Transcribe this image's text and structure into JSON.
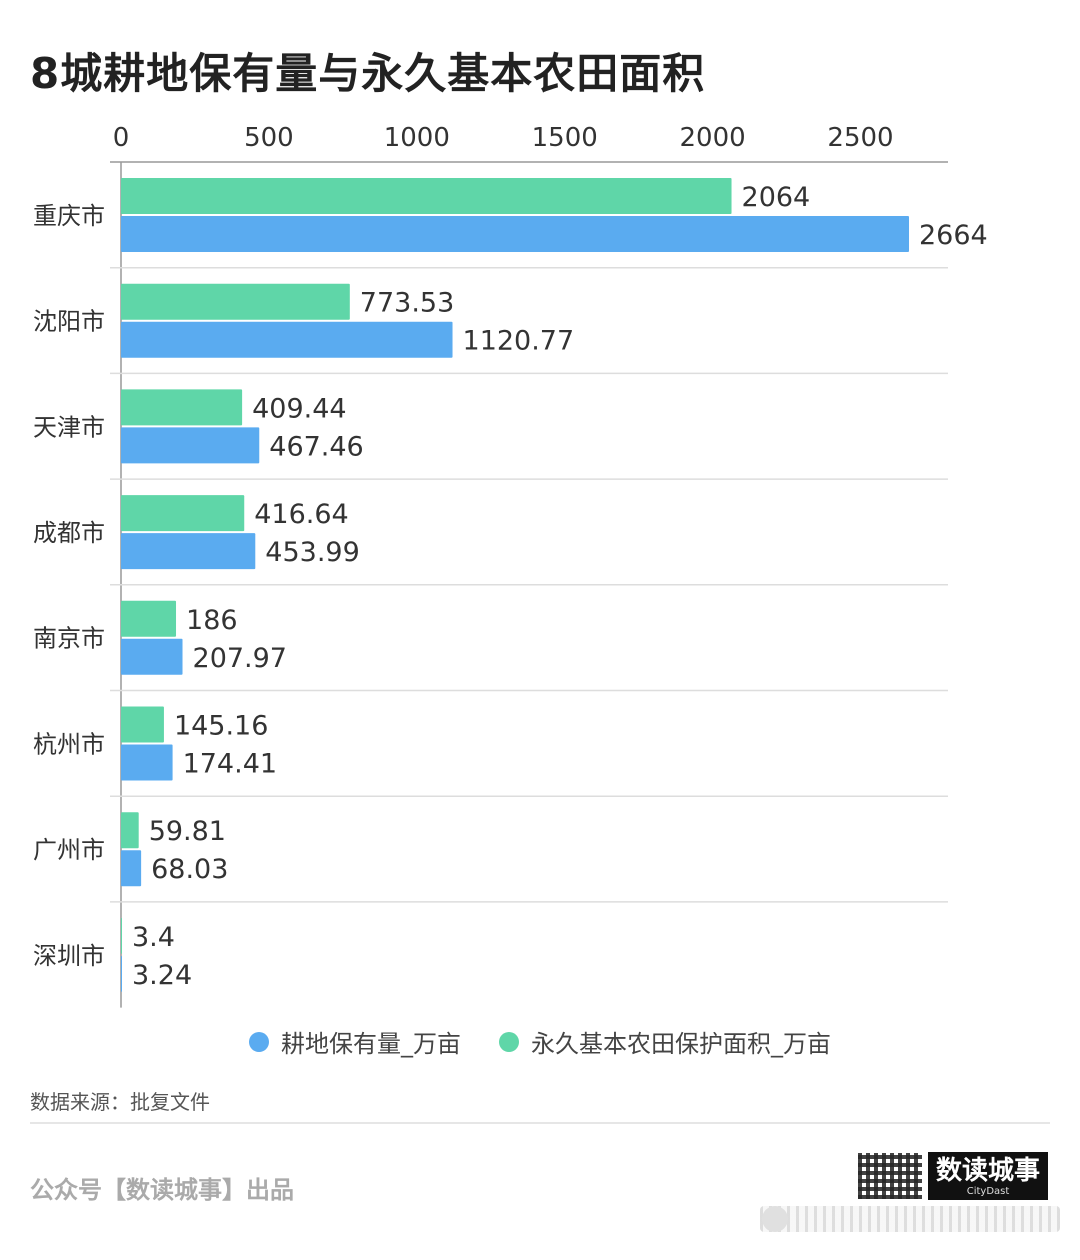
{
  "chart_data": {
    "type": "bar",
    "orientation": "horizontal",
    "title": "8城耕地保有量与永久基本农田面积",
    "categories": [
      "重庆市",
      "沈阳市",
      "天津市",
      "成都市",
      "南京市",
      "杭州市",
      "广州市",
      "深圳市"
    ],
    "series": [
      {
        "name": "永久基本农田保护面积_万亩",
        "color": "#5fd6a8",
        "values": [
          2064,
          773.53,
          409.44,
          416.64,
          186,
          145.16,
          59.81,
          3.4
        ],
        "labels": [
          "2064",
          "773.53",
          "409.44",
          "416.64",
          "186",
          "145.16",
          "59.81",
          "3.4"
        ]
      },
      {
        "name": "耕地保有量_万亩",
        "color": "#5aabf0",
        "values": [
          2664,
          1120.77,
          467.46,
          453.99,
          207.97,
          174.41,
          68.03,
          3.24
        ],
        "labels": [
          "2664",
          "1120.77",
          "467.46",
          "453.99",
          "207.97",
          "174.41",
          "68.03",
          "3.24"
        ]
      }
    ],
    "xlim": [
      0,
      2800
    ],
    "xticks": [
      0,
      500,
      1000,
      1500,
      2000,
      2500
    ],
    "axis_position": "top",
    "grid": "horizontal separators",
    "legend_position": "bottom-center"
  },
  "legend": [
    {
      "label": "耕地保有量_万亩",
      "color": "#5aabf0"
    },
    {
      "label": "永久基本农田保护面积_万亩",
      "color": "#5fd6a8"
    }
  ],
  "source": "数据来源：批复文件",
  "footer": {
    "left": "公众号【数读城事】出品",
    "brand": "数读城事",
    "brand_sub": "CityDast"
  }
}
